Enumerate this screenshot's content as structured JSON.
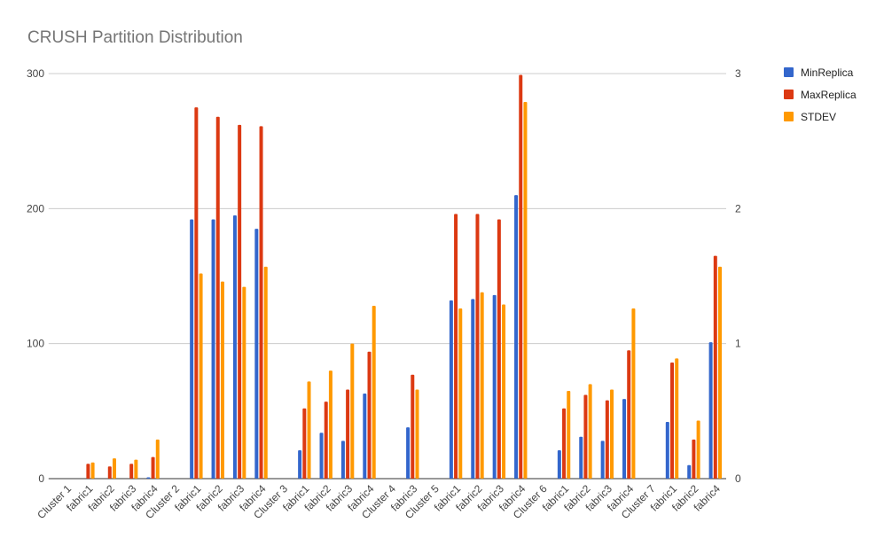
{
  "chart_data": {
    "type": "bar",
    "title": "CRUSH Partition Distribution",
    "categories": [
      "Cluster 1",
      "fabric1",
      "fabric2",
      "fabric3",
      "fabric4",
      "Cluster 2",
      "fabric1",
      "fabric2",
      "fabric3",
      "fabric4",
      "Cluster 3",
      "fabric1",
      "fabric2",
      "fabric3",
      "fabric4",
      "Cluster 4",
      "fabric3",
      "Cluster 5",
      "fabric1",
      "fabric2",
      "fabric3",
      "fabric4",
      "Cluster 6",
      "fabric1",
      "fabric2",
      "fabric3",
      "fabric4",
      "Cluster 7",
      "fabric1",
      "fabric2",
      "fabric4"
    ],
    "series": [
      {
        "name": "MinReplica",
        "axis": "left",
        "color": "#3366cc",
        "values": [
          0,
          0,
          0,
          0,
          1,
          0,
          192,
          192,
          195,
          185,
          0,
          21,
          34,
          28,
          63,
          0,
          38,
          0,
          132,
          133,
          136,
          210,
          0,
          21,
          31,
          28,
          59,
          0,
          42,
          10,
          101
        ]
      },
      {
        "name": "MaxReplica",
        "axis": "left",
        "color": "#dc3912",
        "values": [
          0,
          11,
          9,
          11,
          16,
          0,
          275,
          268,
          262,
          261,
          0,
          52,
          57,
          66,
          94,
          0,
          77,
          0,
          196,
          196,
          192,
          299,
          0,
          52,
          62,
          58,
          95,
          0,
          86,
          29,
          165
        ]
      },
      {
        "name": "STDEV",
        "axis": "right",
        "color": "#ff9900",
        "values": [
          0,
          0.12,
          0.15,
          0.14,
          0.29,
          0,
          1.52,
          1.46,
          1.42,
          1.57,
          0,
          0.72,
          0.8,
          1.0,
          1.28,
          0,
          0.66,
          0,
          1.26,
          1.38,
          1.29,
          2.79,
          0,
          0.65,
          0.7,
          0.66,
          1.26,
          0,
          0.89,
          0.43,
          1.57
        ]
      }
    ],
    "y_left": {
      "ylim": [
        0,
        300
      ],
      "ticks": [
        "0",
        "100",
        "200",
        "300"
      ]
    },
    "y_right": {
      "ylim": [
        0,
        3
      ],
      "ticks": [
        "0",
        "1",
        "2",
        "3"
      ]
    },
    "grid": true,
    "legend_position": "right"
  }
}
